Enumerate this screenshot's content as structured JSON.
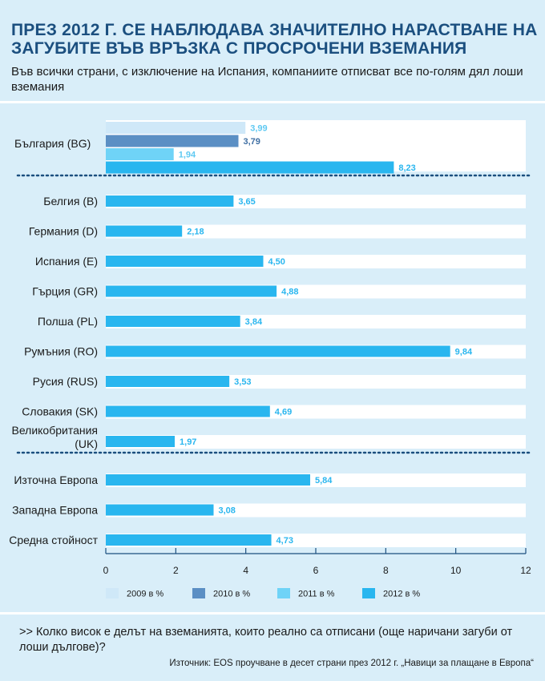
{
  "header": {
    "title": "ПРЕЗ 2012 Г. СЕ НАБЛЮДАВА ЗНАЧИТЕЛНО НАРАСТВАНЕ НА ЗАГУБИТЕ ВЪВ ВРЪЗКА С ПРОСРОЧЕНИ ВЗЕМАНИЯ",
    "subtitle": "Във всички страни, с изключение на Испания, компаниите отписват все по-голям дял лоши вземания"
  },
  "footer": {
    "question": ">> Колко висок е делът на вземанията, които реално са отписани (още наричани загуби от лоши дългове)?",
    "source": "Източник: EOS проучване в десет страни през 2012 г. „Навици за плащане в Европа“"
  },
  "colors": {
    "background": "#d9eef9",
    "title": "#1b4f7f",
    "track": "#ffffff",
    "s2009": "#cfe8f8",
    "s2010": "#5b8fc4",
    "s2011": "#6fd3f7",
    "s2012": "#29b6ef"
  },
  "chart_data": {
    "type": "bar",
    "orientation": "horizontal",
    "xlim": [
      0,
      12
    ],
    "xticks": [
      0,
      2,
      4,
      6,
      8,
      10,
      12
    ],
    "grid": false,
    "legend_position": "bottom",
    "series": [
      {
        "name": "2009 в %",
        "color_key": "s2009"
      },
      {
        "name": "2010 в %",
        "color_key": "s2010"
      },
      {
        "name": "2011 в %",
        "color_key": "s2011"
      },
      {
        "name": "2012 в %",
        "color_key": "s2012"
      }
    ],
    "groups": [
      {
        "categories": [
          {
            "label": "България (BG)",
            "values": [
              3.99,
              3.79,
              1.94,
              8.23
            ],
            "value_labels": [
              "3,99",
              "3,79",
              "1,94",
              "8,23"
            ]
          }
        ]
      },
      {
        "categories": [
          {
            "label": "Белгия (B)",
            "values": [
              null,
              null,
              null,
              3.65
            ],
            "value_labels": [
              "",
              "",
              "",
              "3,65"
            ]
          },
          {
            "label": "Германия (D)",
            "values": [
              null,
              null,
              null,
              2.18
            ],
            "value_labels": [
              "",
              "",
              "",
              "2,18"
            ]
          },
          {
            "label": "Испания (E)",
            "values": [
              null,
              null,
              null,
              4.5
            ],
            "value_labels": [
              "",
              "",
              "",
              "4,50"
            ]
          },
          {
            "label": "Гърция (GR)",
            "values": [
              null,
              null,
              null,
              4.88
            ],
            "value_labels": [
              "",
              "",
              "",
              "4,88"
            ]
          },
          {
            "label": "Полша (PL)",
            "values": [
              null,
              null,
              null,
              3.84
            ],
            "value_labels": [
              "",
              "",
              "",
              "3,84"
            ]
          },
          {
            "label": "Румъния (RO)",
            "values": [
              null,
              null,
              null,
              9.84
            ],
            "value_labels": [
              "",
              "",
              "",
              "9,84"
            ]
          },
          {
            "label": "Русия (RUS)",
            "values": [
              null,
              null,
              null,
              3.53
            ],
            "value_labels": [
              "",
              "",
              "",
              "3,53"
            ]
          },
          {
            "label": "Словакия (SK)",
            "values": [
              null,
              null,
              null,
              4.69
            ],
            "value_labels": [
              "",
              "",
              "",
              "4,69"
            ]
          },
          {
            "label": "Великобритания (UK)",
            "values": [
              null,
              null,
              null,
              1.97
            ],
            "value_labels": [
              "",
              "",
              "",
              "1,97"
            ]
          }
        ]
      },
      {
        "categories": [
          {
            "label": "Източна Европа",
            "values": [
              null,
              null,
              null,
              5.84
            ],
            "value_labels": [
              "",
              "",
              "",
              "5,84"
            ]
          },
          {
            "label": "Западна Европа",
            "values": [
              null,
              null,
              null,
              3.08
            ],
            "value_labels": [
              "",
              "",
              "",
              "3,08"
            ]
          },
          {
            "label": "Средна стойност",
            "values": [
              null,
              null,
              null,
              4.73
            ],
            "value_labels": [
              "",
              "",
              "",
              "4,73"
            ]
          }
        ]
      }
    ]
  }
}
